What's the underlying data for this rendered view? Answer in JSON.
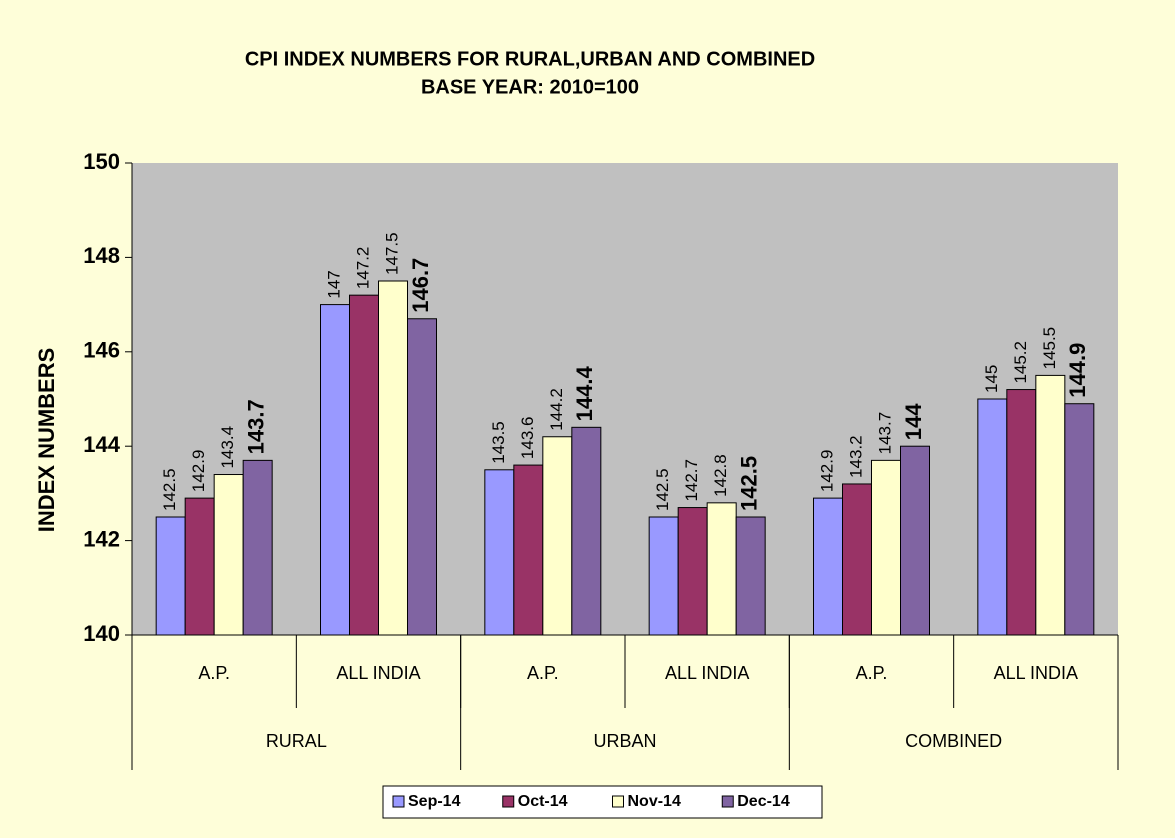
{
  "chart_data": {
    "type": "bar",
    "title": "CPI INDEX NUMBERS FOR  RURAL,URBAN AND COMBINED",
    "subtitle": "BASE YEAR: 2010=100",
    "y_label": "INDEX NUMBERS",
    "categories": [
      "A.P.",
      "ALL INDIA",
      "A.P.",
      "ALL INDIA",
      "A.P.",
      "ALL INDIA"
    ],
    "groups": [
      "RURAL",
      "URBAN",
      "COMBINED"
    ],
    "series": [
      {
        "name": "Sep-14",
        "color": "#9999ff",
        "values": [
          142.5,
          147,
          143.5,
          142.5,
          142.9,
          145
        ]
      },
      {
        "name": "Oct-14",
        "color": "#993366",
        "values": [
          142.9,
          147.2,
          143.6,
          142.7,
          143.2,
          145.2
        ]
      },
      {
        "name": "Nov-14",
        "color": "#ffffcc",
        "values": [
          143.4,
          147.5,
          144.2,
          142.8,
          143.7,
          145.5
        ]
      },
      {
        "name": "Dec-14",
        "color": "#8064a2",
        "values": [
          143.7,
          146.7,
          144.4,
          142.5,
          144,
          144.9
        ]
      }
    ],
    "ylim": [
      140,
      150
    ],
    "yticks": [
      140,
      142,
      144,
      146,
      148,
      150
    ],
    "legend": "bottom"
  }
}
